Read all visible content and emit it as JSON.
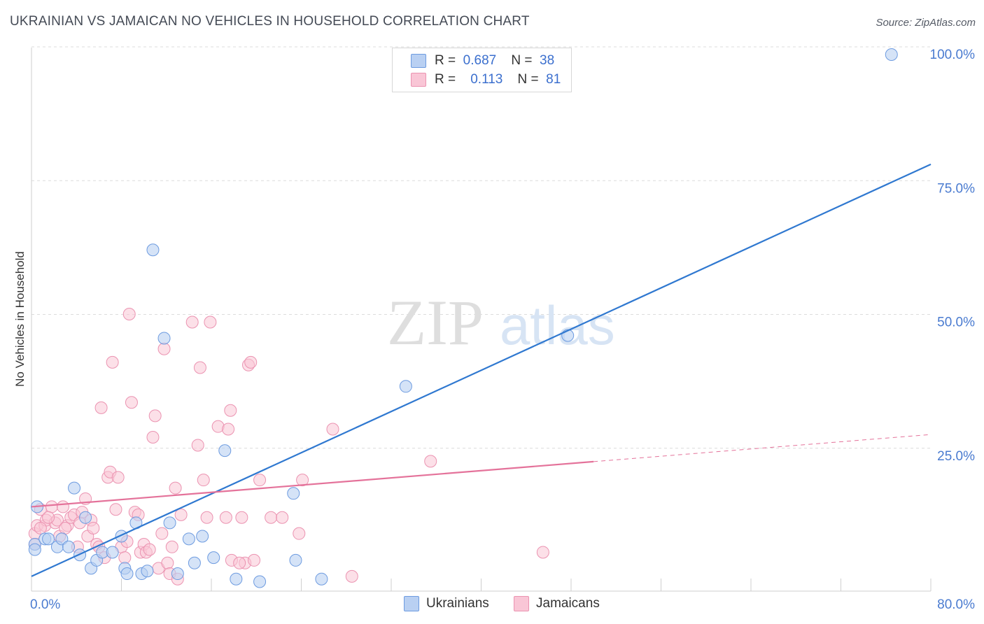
{
  "header": {
    "title": "UKRAINIAN VS JAMAICAN NO VEHICLES IN HOUSEHOLD CORRELATION CHART",
    "source": "Source: ZipAtlas.com"
  },
  "watermark": {
    "zip": "ZIP",
    "atlas": "atlas"
  },
  "legend": {
    "rows": [
      {
        "r_label": "R =",
        "r_value": "0.687",
        "n_label": "N =",
        "n_value": "38"
      },
      {
        "r_label": "R =",
        "r_value": "0.113",
        "n_label": "N =",
        "n_value": "81"
      }
    ]
  },
  "bottom_legend": {
    "ukrainians": "Ukrainians",
    "jamaicans": "Jamaicans"
  },
  "colors": {
    "blue_fill": "#b9d0f2",
    "blue_stroke": "#6d9be0",
    "blue_line": "#2f78d0",
    "pink_fill": "#f9c6d6",
    "pink_stroke": "#eb93b1",
    "pink_line": "#e4729a",
    "grid": "#dcdcdc",
    "tick_text": "#4a7bd0"
  },
  "chart_data": {
    "type": "scatter",
    "title": "UKRAINIAN VS JAMAICAN NO VEHICLES IN HOUSEHOLD CORRELATION CHART",
    "xlabel": "",
    "ylabel": "No Vehicles in Household",
    "xlim": [
      0,
      80
    ],
    "ylim": [
      0,
      100
    ],
    "x_tick_labels": [
      "0.0%",
      "80.0%"
    ],
    "y_ticks": [
      25,
      50,
      75,
      100
    ],
    "y_tick_labels": [
      "25.0%",
      "50.0%",
      "75.0%",
      "100.0%"
    ],
    "legend_position": "top-center",
    "series": [
      {
        "name": "Ukrainians",
        "color": "#6d9be0",
        "r": 0.687,
        "n": 38,
        "trendline": {
          "x": [
            0,
            80
          ],
          "y": [
            2.5,
            79.5
          ],
          "dashed_from": null
        },
        "points": [
          [
            0.3,
            8.5
          ],
          [
            0.5,
            15.5
          ],
          [
            1.2,
            9.5
          ],
          [
            1.5,
            9.5
          ],
          [
            2.3,
            8.0
          ],
          [
            2.7,
            9.5
          ],
          [
            3.3,
            8.0
          ],
          [
            3.8,
            19.0
          ],
          [
            4.3,
            6.5
          ],
          [
            4.8,
            13.5
          ],
          [
            5.3,
            4.0
          ],
          [
            5.8,
            5.5
          ],
          [
            6.3,
            7.0
          ],
          [
            7.2,
            7.0
          ],
          [
            8.0,
            10.0
          ],
          [
            8.3,
            4.0
          ],
          [
            8.5,
            3.0
          ],
          [
            9.3,
            12.5
          ],
          [
            9.8,
            3.0
          ],
          [
            10.3,
            3.5
          ],
          [
            10.8,
            63.5
          ],
          [
            11.8,
            47.0
          ],
          [
            12.3,
            12.5
          ],
          [
            13.0,
            3.0
          ],
          [
            14.0,
            9.5
          ],
          [
            14.5,
            5.0
          ],
          [
            15.2,
            10.0
          ],
          [
            16.2,
            6.0
          ],
          [
            17.2,
            26.0
          ],
          [
            18.2,
            2.0
          ],
          [
            20.3,
            1.5
          ],
          [
            23.3,
            18.0
          ],
          [
            23.5,
            5.5
          ],
          [
            25.8,
            2.0
          ],
          [
            33.3,
            38.0
          ],
          [
            47.7,
            47.5
          ],
          [
            76.5,
            100.0
          ],
          [
            0.3,
            7.5
          ]
        ]
      },
      {
        "name": "Jamaicans",
        "color": "#eb93b1",
        "r": 0.113,
        "n": 81,
        "trendline": {
          "x": [
            0,
            80
          ],
          "y": [
            15.5,
            29.0
          ],
          "dashed_from": 50
        },
        "points": [
          [
            0.3,
            10.5
          ],
          [
            0.5,
            12.0
          ],
          [
            0.8,
            15.0
          ],
          [
            1.2,
            12.0
          ],
          [
            1.3,
            13.0
          ],
          [
            1.8,
            15.5
          ],
          [
            2.1,
            12.5
          ],
          [
            2.3,
            13.0
          ],
          [
            2.8,
            15.5
          ],
          [
            3.2,
            12.0
          ],
          [
            3.5,
            13.5
          ],
          [
            3.8,
            14.0
          ],
          [
            4.1,
            8.0
          ],
          [
            4.3,
            12.5
          ],
          [
            4.5,
            14.5
          ],
          [
            4.8,
            17.0
          ],
          [
            5.0,
            10.0
          ],
          [
            5.3,
            13.0
          ],
          [
            5.5,
            11.5
          ],
          [
            5.8,
            8.5
          ],
          [
            6.0,
            8.0
          ],
          [
            6.2,
            34.0
          ],
          [
            6.5,
            6.0
          ],
          [
            6.8,
            21.0
          ],
          [
            7.0,
            22.0
          ],
          [
            7.2,
            42.5
          ],
          [
            7.5,
            15.0
          ],
          [
            7.7,
            21.0
          ],
          [
            8.0,
            8.0
          ],
          [
            8.3,
            6.0
          ],
          [
            8.5,
            9.0
          ],
          [
            8.7,
            51.5
          ],
          [
            8.9,
            35.0
          ],
          [
            9.2,
            14.5
          ],
          [
            9.5,
            14.0
          ],
          [
            9.7,
            7.0
          ],
          [
            10.0,
            8.5
          ],
          [
            10.2,
            7.0
          ],
          [
            10.5,
            7.5
          ],
          [
            10.8,
            28.5
          ],
          [
            11.0,
            32.5
          ],
          [
            11.3,
            4.0
          ],
          [
            11.6,
            10.5
          ],
          [
            11.8,
            45.0
          ],
          [
            12.1,
            5.0
          ],
          [
            12.3,
            3.0
          ],
          [
            12.5,
            8.0
          ],
          [
            12.8,
            19.0
          ],
          [
            13.0,
            2.0
          ],
          [
            13.3,
            14.0
          ],
          [
            14.3,
            50.0
          ],
          [
            14.8,
            27.0
          ],
          [
            15.0,
            41.5
          ],
          [
            15.3,
            20.5
          ],
          [
            15.9,
            50.0
          ],
          [
            15.6,
            13.5
          ],
          [
            16.6,
            30.5
          ],
          [
            17.3,
            13.5
          ],
          [
            17.7,
            33.5
          ],
          [
            17.5,
            30.0
          ],
          [
            18.7,
            13.5
          ],
          [
            19.0,
            5.0
          ],
          [
            19.3,
            42.0
          ],
          [
            19.5,
            42.5
          ],
          [
            19.8,
            5.5
          ],
          [
            20.3,
            20.5
          ],
          [
            21.3,
            13.5
          ],
          [
            22.3,
            13.5
          ],
          [
            23.8,
            10.5
          ],
          [
            24.1,
            20.5
          ],
          [
            26.8,
            30.0
          ],
          [
            28.5,
            2.5
          ],
          [
            35.5,
            24.0
          ],
          [
            45.5,
            7.0
          ],
          [
            0.3,
            8.5
          ],
          [
            0.8,
            11.5
          ],
          [
            1.5,
            13.5
          ],
          [
            2.5,
            10.0
          ],
          [
            3.0,
            11.5
          ],
          [
            17.8,
            5.5
          ],
          [
            18.5,
            5.0
          ]
        ]
      }
    ]
  }
}
